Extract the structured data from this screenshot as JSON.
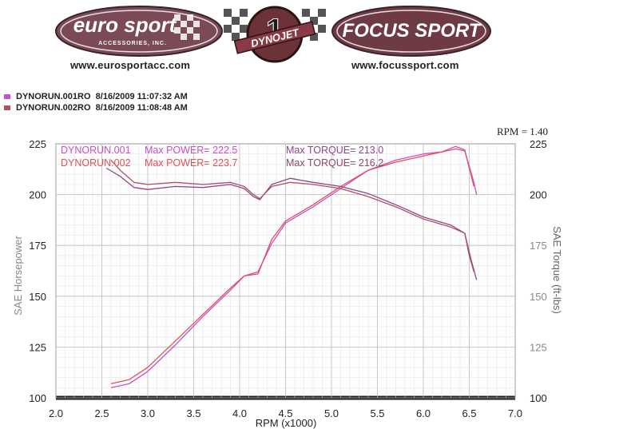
{
  "header": {
    "logos": [
      {
        "brand": "euro sport",
        "tagline": "ACCESSORIES, INC.",
        "url": "www.eurosportacc.com"
      },
      {
        "brand": "DYNOJET",
        "badge": "1",
        "url": ""
      },
      {
        "brand": "FOCUS SPORT",
        "url": "www.focussport.com"
      }
    ]
  },
  "runs": [
    {
      "name": "DYNORUN.001RO",
      "datetime": "8/16/2009 11:07:32 AM",
      "color": "#c850c8"
    },
    {
      "name": "DYNORUN.002RO",
      "datetime": "8/16/2009 11:08:48 AM",
      "color": "#e0505a"
    }
  ],
  "rpm_factor": "RPM = 1.40",
  "chart_data": {
    "type": "line",
    "xlabel": "RPM (x1000)",
    "ylabel": "SAE Horsepower",
    "y2label": "SAE Torque (ft-lbs)",
    "xlim": [
      2.0,
      7.0
    ],
    "ylim": [
      100,
      225
    ],
    "y2lim": [
      100,
      225
    ],
    "xticks": [
      "2.0",
      "2.5",
      "3.0",
      "3.5",
      "4.0",
      "4.5",
      "5.0",
      "5.5",
      "6.0",
      "6.5",
      "7.0"
    ],
    "yticks": [
      "100",
      "125",
      "150",
      "175",
      "200",
      "225"
    ],
    "y2ticks": [
      "100",
      "125",
      "150",
      "175",
      "200",
      "225"
    ],
    "grid": true,
    "annotations": [
      {
        "run": "DYNORUN.001",
        "power_label": "Max POWER= 222.5",
        "torque_label": "Max TORQUE= 213.0",
        "color": "#c850c8"
      },
      {
        "run": "DYNORUN.002",
        "power_label": "Max POWER= 223.7",
        "torque_label": "Max TORQUE= 216.2",
        "color": "#e0505a"
      }
    ],
    "series": [
      {
        "name": "DYNORUN.001 Power",
        "color": "#c850c8",
        "x": [
          2.6,
          2.8,
          3.0,
          3.3,
          3.6,
          3.9,
          4.05,
          4.2,
          4.35,
          4.5,
          4.8,
          5.1,
          5.4,
          5.7,
          6.0,
          6.2,
          6.35,
          6.45,
          6.5,
          6.55,
          6.58
        ],
        "y": [
          105,
          107,
          113,
          126,
          140,
          153,
          160,
          162,
          176,
          186,
          194,
          203,
          212,
          217,
          220,
          221,
          222.5,
          221.5,
          214,
          206,
          200
        ]
      },
      {
        "name": "DYNORUN.002 Power",
        "color": "#e0505a",
        "x": [
          2.6,
          2.8,
          3.0,
          3.3,
          3.6,
          3.9,
          4.05,
          4.2,
          4.35,
          4.5,
          4.8,
          5.1,
          5.4,
          5.7,
          6.0,
          6.2,
          6.35,
          6.45,
          6.5,
          6.55
        ],
        "y": [
          107,
          109,
          115,
          128,
          141,
          154,
          160,
          161,
          178,
          187,
          195,
          204,
          212,
          216,
          219,
          221,
          223.7,
          222,
          213,
          204
        ]
      },
      {
        "name": "DYNORUN.001 Torque",
        "color": "#8a4a8a",
        "x": [
          2.55,
          2.7,
          2.85,
          3.0,
          3.3,
          3.6,
          3.9,
          4.05,
          4.15,
          4.22,
          4.35,
          4.55,
          4.8,
          5.1,
          5.4,
          5.7,
          6.0,
          6.3,
          6.45,
          6.52,
          6.58
        ],
        "y": [
          213,
          209,
          203.5,
          202.5,
          204,
          203.5,
          205,
          203,
          199,
          197.5,
          205,
          208,
          206,
          204,
          200.5,
          195,
          189,
          185,
          181,
          168,
          158
        ]
      },
      {
        "name": "DYNORUN.002 Torque",
        "color": "#b05060",
        "x": [
          2.6,
          2.7,
          2.85,
          3.0,
          3.3,
          3.6,
          3.9,
          4.05,
          4.15,
          4.22,
          4.35,
          4.55,
          4.8,
          5.1,
          5.4,
          5.7,
          6.0,
          6.3,
          6.45,
          6.5,
          6.55
        ],
        "y": [
          217,
          212,
          206,
          205,
          206,
          205,
          206,
          204,
          200,
          198,
          204,
          206,
          205,
          203,
          199,
          194,
          188,
          184,
          181,
          170,
          162
        ]
      }
    ]
  }
}
